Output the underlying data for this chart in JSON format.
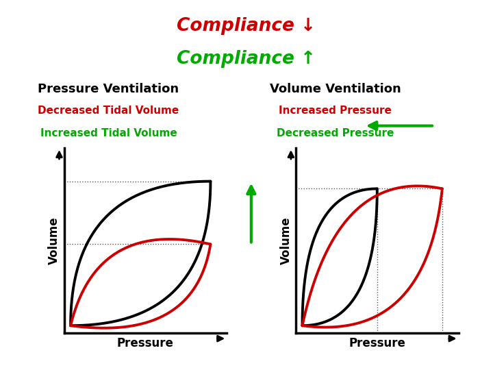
{
  "title_line1": "Compliance ↓",
  "title_line2": "Compliance ↑",
  "title_color1": "#cc0000",
  "title_color2": "#00aa00",
  "left_heading": "Pressure Ventilation",
  "right_heading": "Volume Ventilation",
  "left_sub1": "Decreased Tidal Volume",
  "left_sub2": "Increased Tidal Volume",
  "right_sub1": "Increased Pressure",
  "right_sub2": "Decreased Pressure",
  "sub1_color": "#cc0000",
  "sub2_color": "#00aa00",
  "heading_color": "#000000",
  "bg_color": "#ffffff",
  "black_color": "#000000",
  "red_color": "#cc0000",
  "green_color": "#00aa00"
}
